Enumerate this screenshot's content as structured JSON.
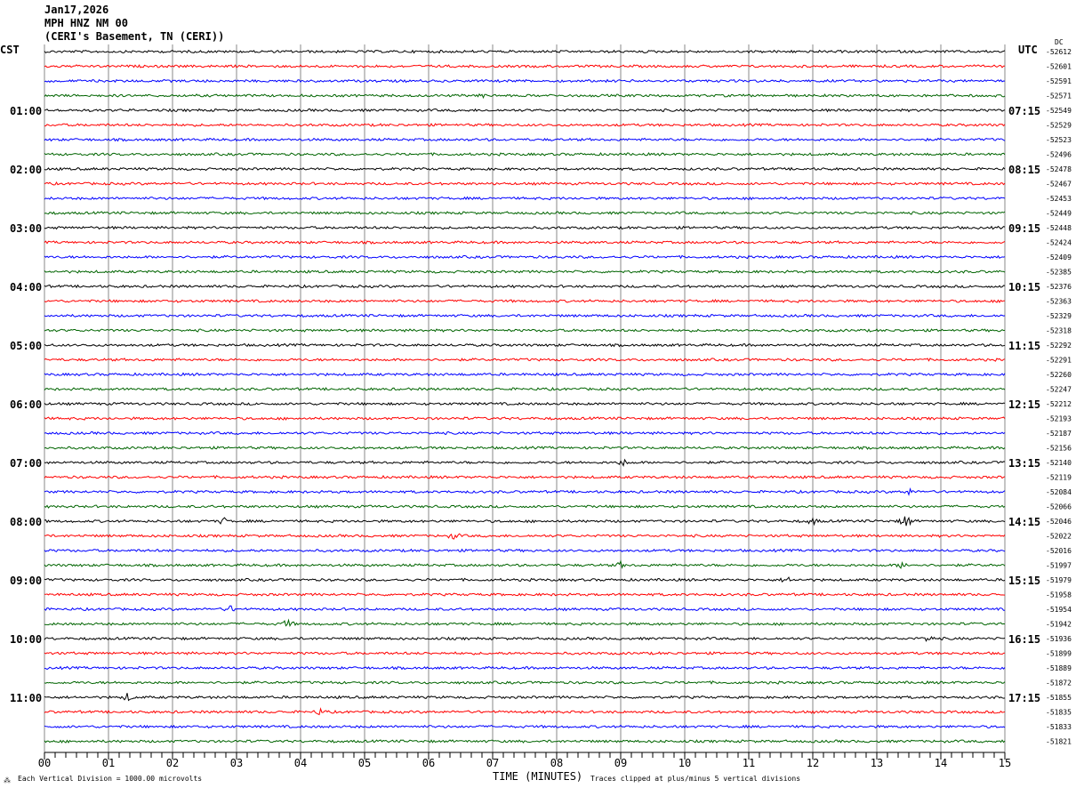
{
  "header": {
    "date": "Jan17,2026",
    "station": "MPH HNZ NM 00",
    "location": "(CERI's Basement, TN (CERI))"
  },
  "left_timezone": "CST",
  "right_timezone": "UTC",
  "dc_label": "DC",
  "footer": {
    "scale_note": "Each Vertical Division = 1000.00 microvolts",
    "xlabel": "TIME (MINUTES)",
    "clip_note": "Traces clipped at plus/minus 5 vertical divisions"
  },
  "chart_data": {
    "type": "line",
    "subtype": "helicorder",
    "xlabel": "TIME (MINUTES)",
    "xlim": [
      0,
      15
    ],
    "x_ticks": [
      "00",
      "01",
      "02",
      "03",
      "04",
      "05",
      "06",
      "07",
      "08",
      "09",
      "10",
      "11",
      "12",
      "13",
      "14",
      "15"
    ],
    "minor_tick_seconds": 10,
    "grid": "vertical every minute",
    "trace_colors": [
      "#000000",
      "#ff0000",
      "#0000ff",
      "#006400"
    ],
    "left_hour_labels": [
      "01:00",
      "02:00",
      "03:00",
      "04:00",
      "05:00",
      "06:00",
      "07:00",
      "08:00",
      "09:00",
      "10:00",
      "11:00"
    ],
    "right_hour_labels": [
      "07:15",
      "08:15",
      "09:15",
      "10:15",
      "11:15",
      "12:15",
      "13:15",
      "14:15",
      "15:15",
      "16:15",
      "17:15"
    ],
    "traces_per_hour": 4,
    "dc_offsets": [
      -52612,
      -52601,
      -52591,
      -52571,
      -52549,
      -52529,
      -52523,
      -52496,
      -52478,
      -52467,
      -52453,
      -52449,
      -52448,
      -52424,
      -52409,
      -52385,
      -52376,
      -52363,
      -52329,
      -52318,
      -52292,
      -52291,
      -52260,
      -52247,
      -52212,
      -52193,
      -52187,
      -52156,
      -52140,
      -52119,
      -52084,
      -52066,
      -52046,
      -52022,
      -52016,
      -51997,
      -51979,
      -51958,
      -51954,
      -51942,
      -51936,
      -51899,
      -51889,
      -51872,
      -51855,
      -51835,
      -51833,
      -51821
    ]
  }
}
